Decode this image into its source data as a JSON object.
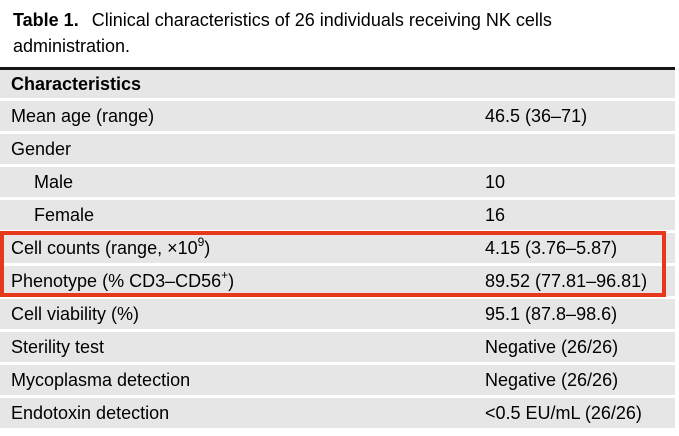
{
  "title": {
    "label": "Table 1.",
    "text": "Clinical characteristics of 26 individuals receiving NK cells administration."
  },
  "table": {
    "header": "Characteristics",
    "rows": [
      {
        "label": "Mean age (range)",
        "value": "46.5 (36–71)"
      },
      {
        "label": "Gender",
        "value": ""
      },
      {
        "label": "Male",
        "value": "10"
      },
      {
        "label": "Female",
        "value": "16"
      },
      {
        "label_prefix": "Cell counts (range, ×10",
        "label_sup": "9",
        "label_suffix": ")",
        "value": "4.15 (3.76–5.87)"
      },
      {
        "label_prefix": "Phenotype (% CD3–CD56",
        "label_sup": "+",
        "label_suffix": ")",
        "value": "89.52 (77.81–96.81)"
      },
      {
        "label": "Cell viability (%)",
        "value": "95.1 (87.8–98.6)"
      },
      {
        "label": "Sterility test",
        "value": "Negative (26/26)"
      },
      {
        "label": "Mycoplasma detection",
        "value": "Negative (26/26)"
      },
      {
        "label": "Endotoxin detection",
        "value": "<0.5 EU/mL (26/26)"
      }
    ],
    "colors": {
      "row_background": "#e6e6e6",
      "top_rule": "#161616",
      "highlight_border": "#e8381c"
    }
  }
}
